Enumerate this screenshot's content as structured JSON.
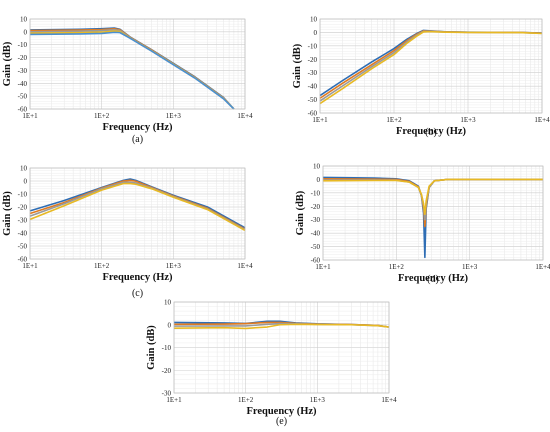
{
  "figure": {
    "colors": [
      "#2e6db4",
      "#e07a1f",
      "#9a9a9a",
      "#e8b923",
      "#4a8fd1",
      "#5a9e3a",
      "#1f3f7a",
      "#a8501c"
    ]
  },
  "chart_data": [
    {
      "panel": "(a)",
      "type": "line",
      "xscale": "log",
      "grid": true,
      "xlabel": "Frequency (Hz)",
      "ylabel": "Gain (dB)",
      "xlim": [
        10,
        10000
      ],
      "ylim": [
        -60,
        10
      ],
      "xticks": [
        "1E+1",
        "1E+2",
        "1E+3",
        "1E+4"
      ],
      "yticks": [
        "-60",
        "-50",
        "-40",
        "-30",
        "-20",
        "-10",
        "0",
        "10"
      ],
      "series": [
        {
          "x": [
            10,
            50,
            100,
            150,
            180,
            250,
            500,
            1000,
            2000,
            5000,
            7000
          ],
          "y": [
            1.5,
            2.0,
            2.5,
            3.0,
            2.0,
            -4.0,
            -14.0,
            -24.5,
            -35.0,
            -51.0,
            -60.0
          ]
        },
        {
          "x": [
            10,
            50,
            100,
            150,
            180,
            250,
            500,
            1000,
            2000,
            5000,
            7000
          ],
          "y": [
            1.0,
            1.4,
            1.8,
            2.4,
            1.6,
            -4.2,
            -14.2,
            -24.8,
            -35.3,
            -51.3,
            -60.0
          ]
        },
        {
          "x": [
            10,
            50,
            100,
            150,
            180,
            250,
            500,
            1000,
            2000,
            5000,
            7000
          ],
          "y": [
            0.0,
            0.5,
            1.0,
            1.6,
            1.0,
            -4.5,
            -14.5,
            -25.0,
            -35.5,
            -51.5,
            -60.0
          ]
        },
        {
          "x": [
            10,
            50,
            100,
            150,
            180,
            250,
            500,
            1000,
            2000,
            5000,
            7000
          ],
          "y": [
            -1.0,
            -0.6,
            -0.2,
            0.6,
            0.2,
            -4.8,
            -14.8,
            -25.2,
            -35.8,
            -51.8,
            -60.0
          ]
        },
        {
          "x": [
            10,
            50,
            100,
            150,
            180,
            250,
            500,
            1000,
            2000,
            5000,
            7000
          ],
          "y": [
            -2.0,
            -1.6,
            -1.2,
            -0.4,
            -0.6,
            -5.0,
            -15.0,
            -25.5,
            -36.0,
            -52.0,
            -60.0
          ]
        }
      ]
    },
    {
      "panel": "(b)",
      "type": "line",
      "xscale": "log",
      "grid": true,
      "xlabel": "Frequency (Hz)",
      "ylabel": "Gain (dB)",
      "xlim": [
        10,
        10000
      ],
      "ylim": [
        -60,
        10
      ],
      "xticks": [
        "1E+1",
        "1E+2",
        "1E+3",
        "1E+4"
      ],
      "yticks": [
        "-60",
        "-50",
        "-40",
        "-30",
        "-20",
        "-10",
        "0",
        "10"
      ],
      "series": [
        {
          "x": [
            10,
            20,
            50,
            100,
            150,
            200,
            250,
            300,
            500,
            1000,
            5000,
            10000
          ],
          "y": [
            -47,
            -36,
            -22,
            -12,
            -5,
            -1,
            1.5,
            1.2,
            0.5,
            0.2,
            0,
            -0.5
          ]
        },
        {
          "x": [
            10,
            20,
            50,
            100,
            150,
            200,
            250,
            300,
            500,
            1000,
            5000,
            10000
          ],
          "y": [
            -49,
            -38,
            -24,
            -13.5,
            -6,
            -1.5,
            1.2,
            1.0,
            0.4,
            0.1,
            0,
            -0.6
          ]
        },
        {
          "x": [
            10,
            20,
            50,
            100,
            150,
            200,
            250,
            300,
            500,
            1000,
            5000,
            10000
          ],
          "y": [
            -51,
            -40,
            -25.5,
            -15,
            -7,
            -2.2,
            0.8,
            0.8,
            0.3,
            0.1,
            -0.1,
            -0.7
          ]
        },
        {
          "x": [
            10,
            20,
            50,
            100,
            150,
            200,
            250,
            300,
            500,
            1000,
            5000,
            10000
          ],
          "y": [
            -53,
            -42,
            -27,
            -16.5,
            -8,
            -3,
            0.4,
            0.6,
            0.2,
            0.0,
            -0.1,
            -0.8
          ]
        }
      ]
    },
    {
      "panel": "(c)",
      "type": "line",
      "xscale": "log",
      "grid": true,
      "xlabel": "Frequency (Hz)",
      "ylabel": "Gain (dB)",
      "xlim": [
        10,
        10000
      ],
      "ylim": [
        -60,
        10
      ],
      "xticks": [
        "1E+1",
        "1E+2",
        "1E+3",
        "1E+4"
      ],
      "yticks": [
        "-60",
        "-50",
        "-40",
        "-30",
        "-20",
        "-10",
        "0",
        "10"
      ],
      "series": [
        {
          "x": [
            10,
            30,
            100,
            200,
            250,
            300,
            500,
            1000,
            3000,
            10000
          ],
          "y": [
            -23,
            -15,
            -5,
            0.5,
            1.5,
            0.5,
            -4.5,
            -11,
            -20,
            -36
          ]
        },
        {
          "x": [
            10,
            30,
            100,
            200,
            250,
            300,
            500,
            1000,
            3000,
            10000
          ],
          "y": [
            -25,
            -16.5,
            -5.5,
            0,
            0.5,
            -0.2,
            -5,
            -11.5,
            -21,
            -37
          ]
        },
        {
          "x": [
            10,
            30,
            100,
            200,
            250,
            300,
            500,
            1000,
            3000,
            10000
          ],
          "y": [
            -27,
            -17.5,
            -6,
            -1,
            -1,
            -1.5,
            -5.5,
            -12,
            -21.5,
            -37.5
          ]
        },
        {
          "x": [
            10,
            30,
            100,
            200,
            250,
            300,
            500,
            1000,
            3000,
            10000
          ],
          "y": [
            -29.5,
            -19,
            -7,
            -2,
            -2,
            -2.5,
            -6,
            -12.5,
            -22,
            -38
          ]
        }
      ]
    },
    {
      "panel": "(d)",
      "type": "line",
      "xscale": "log",
      "grid": true,
      "xlabel": "Frequency (Hz)",
      "ylabel": "Gain (dB)",
      "xlim": [
        10,
        10000
      ],
      "ylim": [
        -60,
        10
      ],
      "xticks": [
        "1E+1",
        "1E+2",
        "1E+3",
        "1E+4"
      ],
      "yticks": [
        "-60",
        "-50",
        "-40",
        "-30",
        "-20",
        "-10",
        "0",
        "10"
      ],
      "series": [
        {
          "x": [
            10,
            50,
            100,
            150,
            200,
            220,
            235,
            245,
            255,
            280,
            330,
            500,
            1000,
            10000
          ],
          "y": [
            1.5,
            1.0,
            0.5,
            -1,
            -5,
            -12,
            -25,
            -58,
            -22,
            -6,
            -1,
            0,
            0,
            0
          ]
        },
        {
          "x": [
            10,
            50,
            100,
            150,
            200,
            220,
            235,
            245,
            255,
            280,
            330,
            500,
            1000,
            10000
          ],
          "y": [
            0.5,
            0.2,
            0,
            -1.5,
            -5.5,
            -12,
            -22,
            -35,
            -20,
            -6,
            -1,
            0,
            0,
            0
          ]
        },
        {
          "x": [
            10,
            50,
            100,
            150,
            200,
            220,
            235,
            245,
            255,
            280,
            330,
            500,
            1000,
            10000
          ],
          "y": [
            -0.5,
            -0.5,
            -0.6,
            -2,
            -6,
            -12,
            -20,
            -30,
            -18,
            -6,
            -1,
            0,
            0,
            0
          ]
        },
        {
          "x": [
            10,
            50,
            100,
            150,
            200,
            220,
            235,
            245,
            255,
            280,
            330,
            500,
            1000,
            10000
          ],
          "y": [
            -1.0,
            -0.8,
            -0.8,
            -2,
            -6,
            -11,
            -18,
            -26,
            -16,
            -5,
            -1,
            0,
            0,
            0
          ]
        }
      ]
    },
    {
      "panel": "(e)",
      "type": "line",
      "xscale": "log",
      "grid": true,
      "xlabel": "Frequency (Hz)",
      "ylabel": "Gain (dB)",
      "xlim": [
        10,
        10000
      ],
      "ylim": [
        -30,
        10
      ],
      "xticks": [
        "1E+1",
        "1E+2",
        "1E+3",
        "1E+4"
      ],
      "yticks": [
        "-30",
        "-20",
        "-10",
        "0",
        "10"
      ],
      "series": [
        {
          "x": [
            10,
            50,
            100,
            200,
            300,
            500,
            1000,
            3000,
            7000,
            10000
          ],
          "y": [
            1.0,
            0.8,
            0.6,
            1.5,
            1.5,
            0.8,
            0.4,
            0.1,
            -0.3,
            -1.0
          ]
        },
        {
          "x": [
            10,
            50,
            100,
            200,
            300,
            500,
            1000,
            3000,
            7000,
            10000
          ],
          "y": [
            0.2,
            0.3,
            0.5,
            1.0,
            1.0,
            0.6,
            0.3,
            0.1,
            -0.3,
            -1.0
          ]
        },
        {
          "x": [
            10,
            50,
            100,
            200,
            300,
            500,
            1000,
            3000,
            7000,
            10000
          ],
          "y": [
            -0.6,
            -0.5,
            -0.5,
            0.2,
            0.5,
            0.4,
            0.2,
            0.0,
            -0.4,
            -1.0
          ]
        },
        {
          "x": [
            10,
            50,
            100,
            200,
            300,
            500,
            1000,
            3000,
            7000,
            10000
          ],
          "y": [
            -1.5,
            -1.3,
            -1.6,
            -1.0,
            0.0,
            0.2,
            0.1,
            0.0,
            -0.4,
            -1.0
          ]
        }
      ]
    }
  ]
}
